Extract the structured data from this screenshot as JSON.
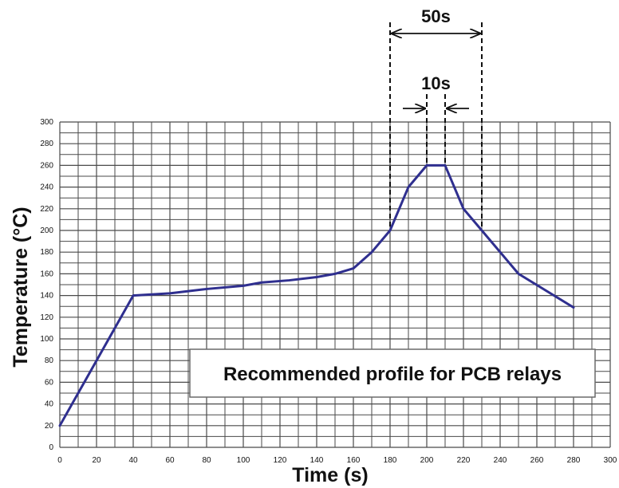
{
  "chart_data": {
    "type": "line",
    "title": "",
    "xlabel": "Time (s)",
    "ylabel": "Temperature (°C)",
    "xlim": [
      0,
      300
    ],
    "ylim": [
      0,
      300
    ],
    "x_ticks": [
      0,
      20,
      40,
      60,
      80,
      100,
      120,
      140,
      160,
      180,
      200,
      220,
      240,
      260,
      280,
      300
    ],
    "y_ticks": [
      0,
      20,
      40,
      60,
      80,
      100,
      120,
      140,
      160,
      180,
      200,
      220,
      240,
      260,
      280,
      300
    ],
    "grid": true,
    "series": [
      {
        "color": "#2f2f8f",
        "points": [
          [
            0,
            20
          ],
          [
            40,
            140
          ],
          [
            60,
            142
          ],
          [
            80,
            146
          ],
          [
            100,
            149
          ],
          [
            110,
            152
          ],
          [
            125,
            154
          ],
          [
            140,
            157
          ],
          [
            150,
            160
          ],
          [
            160,
            165
          ],
          [
            170,
            180
          ],
          [
            180,
            200
          ],
          [
            190,
            240
          ],
          [
            200,
            260
          ],
          [
            210,
            260
          ],
          [
            220,
            220
          ],
          [
            230,
            200
          ],
          [
            250,
            160
          ],
          [
            280,
            129
          ]
        ]
      }
    ],
    "annotations": {
      "outer_span": {
        "label": "50s",
        "x_start": 180,
        "x_end": 230
      },
      "inner_span": {
        "label": "10s",
        "x_start": 200,
        "x_end": 210
      },
      "box_text": "Recommended profile for PCB relays"
    }
  },
  "colors": {
    "grid": "#4a4a4a",
    "line": "#2f2f8f",
    "text": "#111111"
  }
}
